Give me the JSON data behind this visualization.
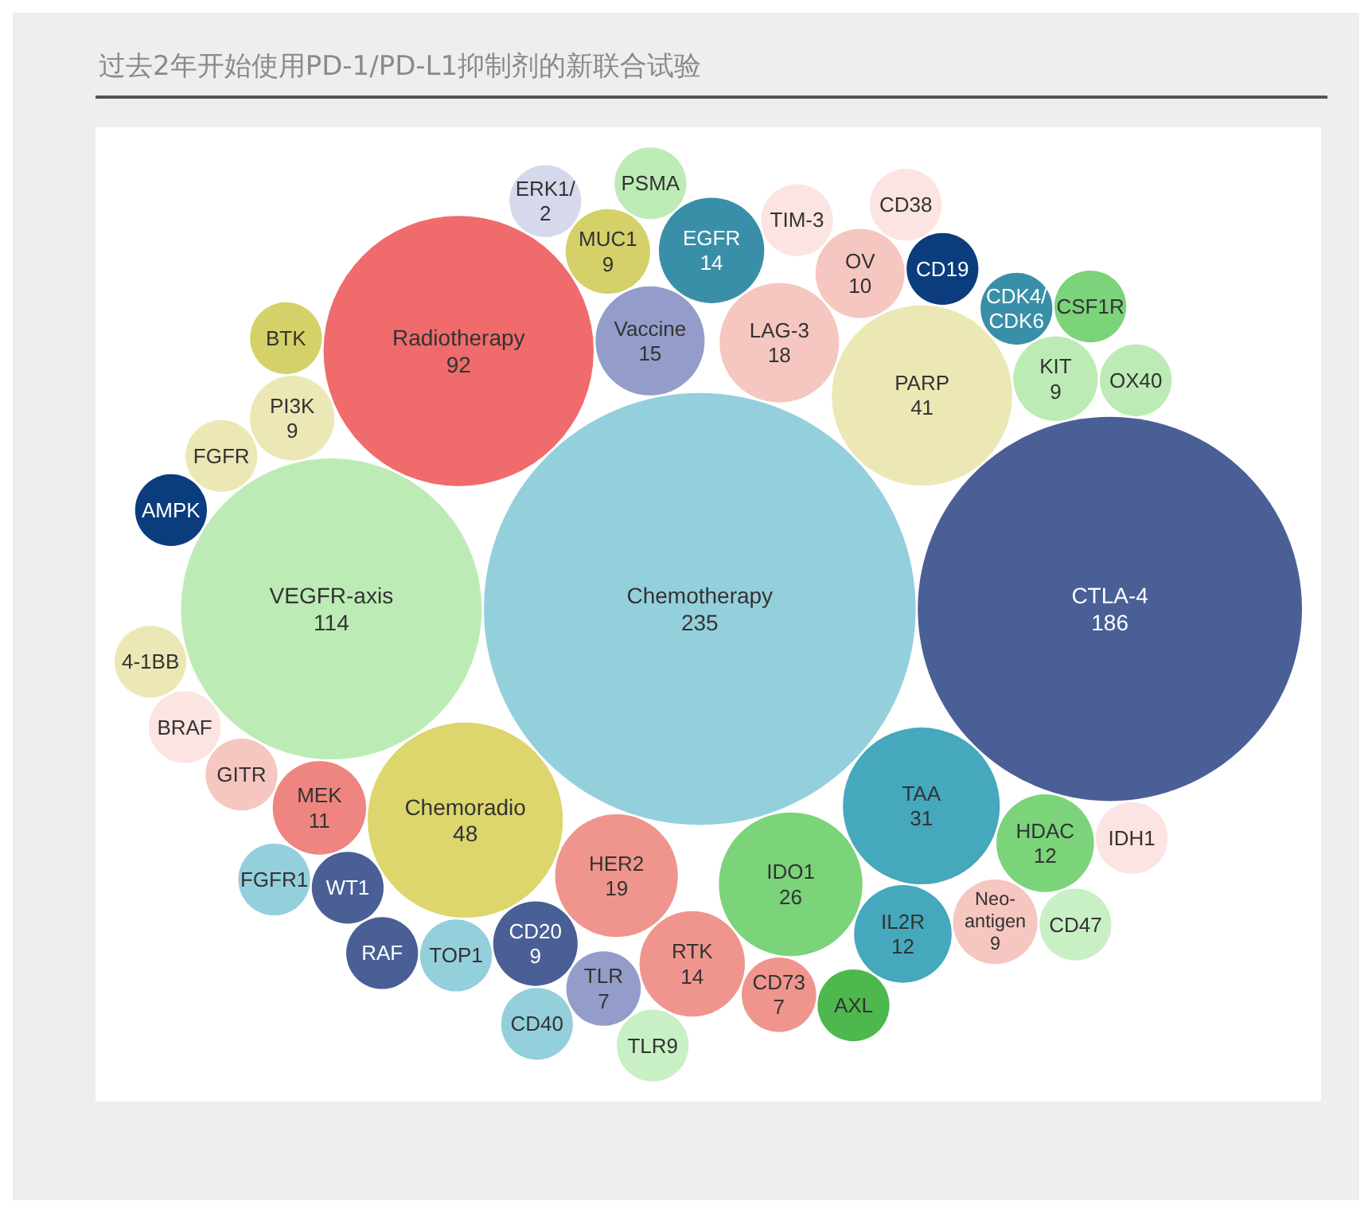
{
  "chart_data": {
    "type": "other",
    "data_labels": true,
    "title": "过去2年开始使用PD-1/PD-L1抑制剂的新联合试验",
    "categories": [
      "Chemotherapy",
      "CTLA-4",
      "VEGFR-axis",
      "Radiotherapy",
      "Chemoradio",
      "PARP",
      "TAA",
      "IDO1",
      "HER2",
      "LAG-3",
      "Vaccine",
      "RTK",
      "EGFR",
      "HDAC",
      "IL2R",
      "MEK",
      "OV",
      "CD20",
      "KIT",
      "MUC1",
      "PI3K",
      "Neo-antigen",
      "TLR",
      "CD73",
      "CD19",
      "CDK4/CDK6",
      "WT1",
      "TIM-3",
      "TOP1",
      "GITR",
      "FGFR",
      "IDH1",
      "OX40",
      "AXL",
      "BRAF",
      "BTK",
      "ERK1/2",
      "RAF",
      "PSMA",
      "AMPK",
      "FGFR1",
      "CSF1R",
      "CD47",
      "CD40",
      "CD38",
      "4-1BB",
      "TLR9"
    ],
    "values": [
      235,
      186,
      114,
      92,
      48,
      41,
      31,
      26,
      19,
      18,
      15,
      14,
      14,
      12,
      12,
      11,
      10,
      9,
      9,
      9,
      9,
      9,
      7,
      7,
      null,
      null,
      null,
      null,
      null,
      null,
      null,
      null,
      null,
      null,
      null,
      null,
      null,
      null,
      null,
      null,
      null,
      null,
      null,
      null,
      null,
      null,
      null
    ],
    "colors": [
      "#94cfdc",
      "#4a5f96",
      "#bdebb5",
      "#ef6b6c",
      "#dcd66c",
      "#ebe8b5",
      "#45a8bd",
      "#7bd37a",
      "#ef958d",
      "#f6c6c0",
      "#949dc9",
      "#ef958d",
      "#3a8fa8",
      "#7bd37a",
      "#45a8bd",
      "#ee8580",
      "#f6c6c0",
      "#4a5f96",
      "#bdebb5",
      "#d4d168",
      "#ebe8b5",
      "#f6c6c0",
      "#949dc9",
      "#ef958d",
      "#0b3d7e",
      "#3a8fa8",
      "#4a5f96",
      "#fbe4e2",
      "#94cfdc",
      "#f6c6c0",
      "#ebe8b5",
      "#fbe4e2",
      "#bdebb5",
      "#4db84e",
      "#fbe4e2",
      "#d4d168",
      "#d6d9ec",
      "#4a5f96",
      "#bdebb5",
      "#0b3d7e",
      "#94cfdc",
      "#7bd37a",
      "#c9efc5",
      "#94cfdc",
      "#fbe4e2",
      "#ebe8b5",
      "#c9efc5"
    ]
  }
}
